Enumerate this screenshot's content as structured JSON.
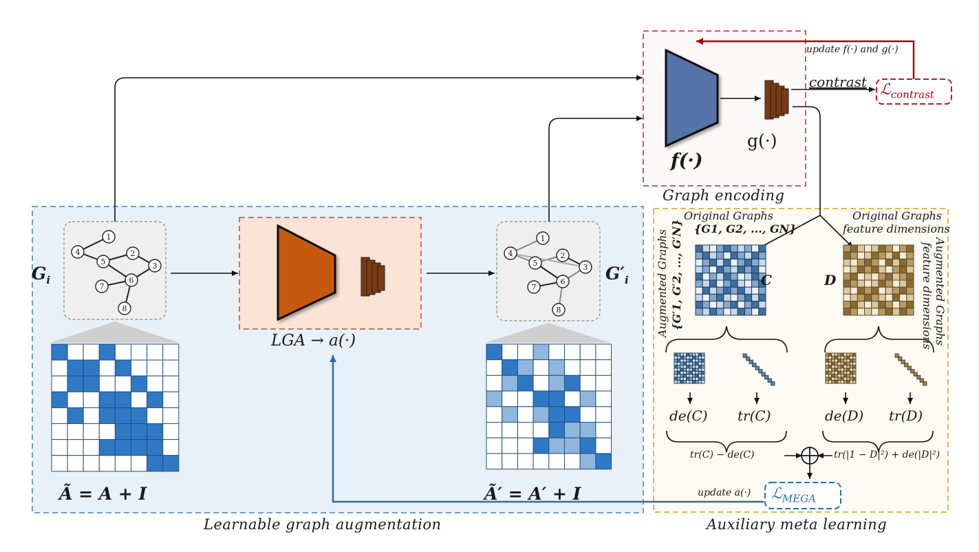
{
  "sections": {
    "learnable": "Learnable graph augmentation",
    "meta": "Auxiliary meta learning",
    "encoding": "Graph encoding"
  },
  "graph_in": {
    "label": "G",
    "sub": "i",
    "nodes": [
      "1",
      "2",
      "3",
      "4",
      "5",
      "6",
      "7",
      "8"
    ],
    "eq": "Ã = A + I"
  },
  "graph_out": {
    "label": "G′",
    "sub": "i",
    "nodes": [
      "1",
      "2",
      "3",
      "4",
      "5",
      "6",
      "7",
      "8"
    ],
    "eq": "Ã′ = A′ + I"
  },
  "lga": "LGA  →  a(·)",
  "encoder": {
    "f": "f(·)",
    "g": "g(·)"
  },
  "contrast": {
    "word": "contrast",
    "loss": "ℒcontrast",
    "loss_main": "ℒ",
    "loss_sub": "contrast",
    "update": "update f(·) and g(·)"
  },
  "meta": {
    "orig_title": "Original Graphs",
    "orig_set": "{G1, G2, ..., GN}",
    "orig_feat_title": "Original Graphs",
    "orig_feat": "feature dimensions",
    "aug_title": "Augmented Graphs",
    "aug_set": "{G′1, G′2, ..., G′N}",
    "aug_feat_title": "Augmented Graphs",
    "aug_feat": "feature dimensions",
    "C": "C",
    "D": "D",
    "deC": "de(C)",
    "trC": "tr(C)",
    "deD": "de(D)",
    "trD": "tr(D)",
    "left_term": "tr(C) − de(C)",
    "right_term": "tr(|1 − D|²) + de(|D|²)",
    "loss": "ℒMEGA",
    "loss_main": "ℒ",
    "loss_sub": "MEGA",
    "update": "update a(·)"
  },
  "colors": {
    "blue_panel": "#e9f1f8",
    "blue_border": "#4a7fb0",
    "orange_panel": "#fbe3d6",
    "orange_border": "#b5552a",
    "orange_trap": "#c55a11",
    "meta_panel": "#fcfaf2",
    "meta_border": "#d4a017",
    "red": "#b00000",
    "encoder_blue": "#5572a9",
    "matrix_blue": "#2f78c4",
    "matrix_light": "#8fb6dc",
    "corr_blue": "#5b84ad",
    "corr_brown": "#9c7f4a",
    "feat_dark": "#6b3410"
  }
}
